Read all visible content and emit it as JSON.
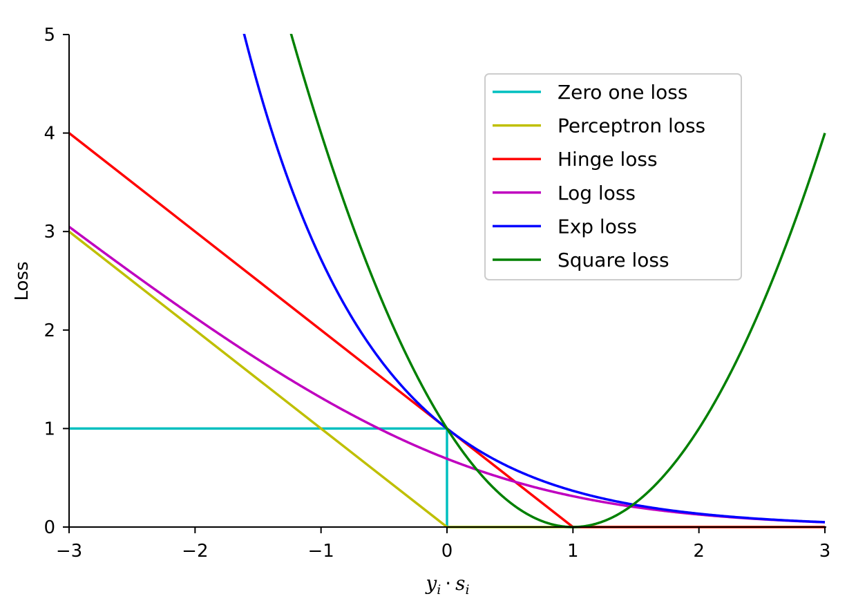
{
  "chart_data": {
    "type": "line",
    "title": "",
    "ylabel": "Loss",
    "xlabel": {
      "var1": "y",
      "sub1": "i",
      "op": "·",
      "var2": "s",
      "sub2": "i"
    },
    "xlim": [
      -3,
      3
    ],
    "ylim": [
      0,
      5
    ],
    "xticks": [
      -3,
      -2,
      -1,
      0,
      1,
      2,
      3
    ],
    "xtick_labels": [
      "−3",
      "−2",
      "−1",
      "0",
      "1",
      "2",
      "3"
    ],
    "yticks": [
      0,
      1,
      2,
      3,
      4,
      5
    ],
    "ytick_labels": [
      "0",
      "1",
      "2",
      "3",
      "4",
      "5"
    ],
    "legend_position": "top-right",
    "grid": false,
    "series": [
      {
        "name": "Zero one loss",
        "color": "#00bfbf",
        "formula": "zero_one",
        "points": [
          [
            -3,
            1
          ],
          [
            0,
            1
          ],
          [
            0,
            0
          ],
          [
            3,
            0
          ]
        ]
      },
      {
        "name": "Perceptron loss",
        "color": "#bfbf00",
        "formula": "perceptron",
        "points": [
          [
            -3,
            3
          ],
          [
            0,
            0
          ],
          [
            3,
            0
          ]
        ]
      },
      {
        "name": "Hinge loss",
        "color": "#ff0000",
        "formula": "hinge",
        "points": [
          [
            -3,
            4
          ],
          [
            1,
            0
          ],
          [
            3,
            0
          ]
        ]
      },
      {
        "name": "Log loss",
        "color": "#bf00bf",
        "formula": "log",
        "points": [
          [
            -3,
            3.05
          ],
          [
            0,
            0.69
          ],
          [
            3,
            0.05
          ]
        ]
      },
      {
        "name": "Exp loss",
        "color": "#0000ff",
        "formula": "exp",
        "points": [
          [
            -1.61,
            5
          ],
          [
            0,
            1
          ],
          [
            3,
            0.05
          ]
        ]
      },
      {
        "name": "Square loss",
        "color": "#008000",
        "formula": "square",
        "points": [
          [
            -1.24,
            5
          ],
          [
            1,
            0
          ],
          [
            3,
            4
          ]
        ]
      }
    ]
  }
}
